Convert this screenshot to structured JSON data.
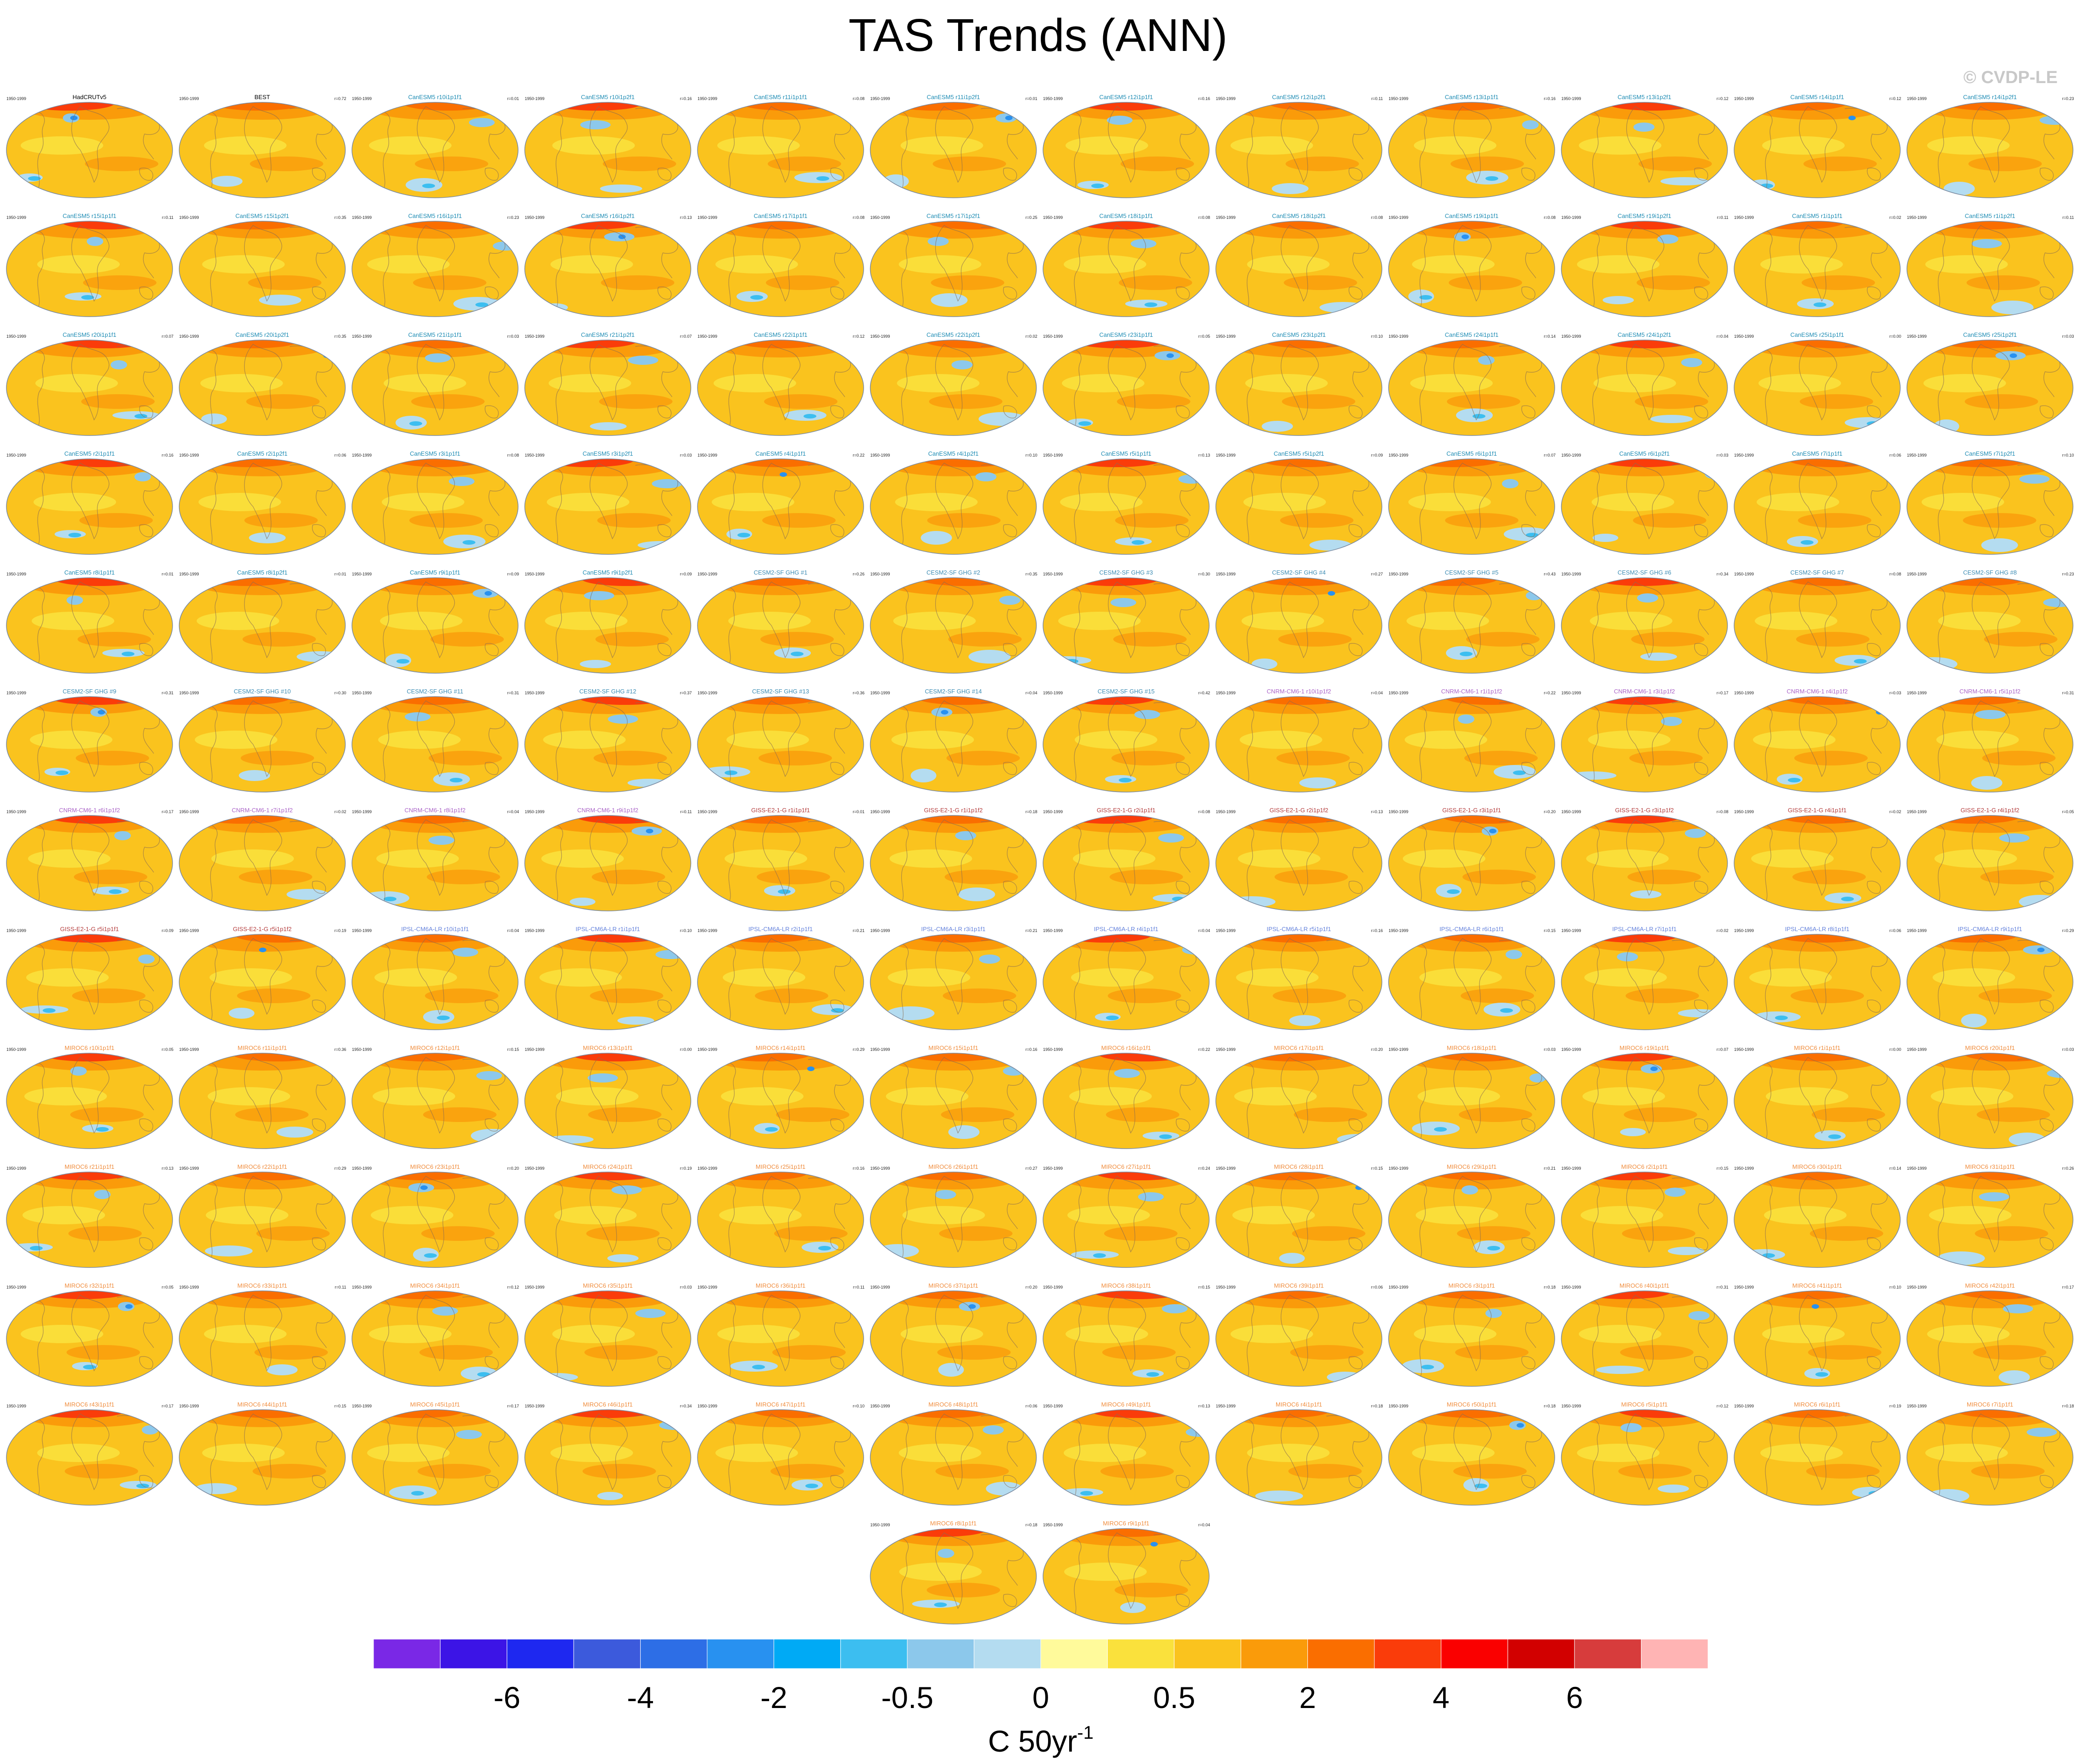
{
  "title": "TAS Trends (ANN)",
  "copyright": "© CVDP-LE",
  "chart_data": {
    "type": "map-panel-grid",
    "columns": 12,
    "period": "1950-1999",
    "panels": [
      {
        "name": "HadCRUTv5",
        "r": "",
        "obs": true
      },
      {
        "name": "BEST",
        "r": "r=0.72",
        "obs": true
      },
      {
        "name": "CanESM5 r10i1p1f1",
        "r": "r=0.01"
      },
      {
        "name": "CanESM5 r10i1p2f1",
        "r": "r=0.16"
      },
      {
        "name": "CanESM5 r11i1p1f1",
        "r": "r=0.08"
      },
      {
        "name": "CanESM5 r11i1p2f1",
        "r": "r=0.01"
      },
      {
        "name": "CanESM5 r12i1p1f1",
        "r": "r=0.16"
      },
      {
        "name": "CanESM5 r12i1p2f1",
        "r": "r=0.11"
      },
      {
        "name": "CanESM5 r13i1p1f1",
        "r": "r=0.16"
      },
      {
        "name": "CanESM5 r13i1p2f1",
        "r": "r=0.12"
      },
      {
        "name": "CanESM5 r14i1p1f1",
        "r": "r=0.12"
      },
      {
        "name": "CanESM5 r14i1p2f1",
        "r": "r=0.23"
      },
      {
        "name": "CanESM5 r15i1p1f1",
        "r": "r=0.11"
      },
      {
        "name": "CanESM5 r15i1p2f1",
        "r": "r=0.35"
      },
      {
        "name": "CanESM5 r16i1p1f1",
        "r": "r=0.23"
      },
      {
        "name": "CanESM5 r16i1p2f1",
        "r": "r=0.13"
      },
      {
        "name": "CanESM5 r17i1p1f1",
        "r": "r=0.08"
      },
      {
        "name": "CanESM5 r17i1p2f1",
        "r": "r=0.25"
      },
      {
        "name": "CanESM5 r18i1p1f1",
        "r": "r=0.08"
      },
      {
        "name": "CanESM5 r18i1p2f1",
        "r": "r=0.08"
      },
      {
        "name": "CanESM5 r19i1p1f1",
        "r": "r=0.08"
      },
      {
        "name": "CanESM5 r19i1p2f1",
        "r": "r=0.11"
      },
      {
        "name": "CanESM5 r1i1p1f1",
        "r": "r=0.02"
      },
      {
        "name": "CanESM5 r1i1p2f1",
        "r": "r=0.11"
      },
      {
        "name": "CanESM5 r20i1p1f1",
        "r": "r=0.07"
      },
      {
        "name": "CanESM5 r20i1p2f1",
        "r": "r=0.35"
      },
      {
        "name": "CanESM5 r21i1p1f1",
        "r": "r=0.03"
      },
      {
        "name": "CanESM5 r21i1p2f1",
        "r": "r=0.07"
      },
      {
        "name": "CanESM5 r22i1p1f1",
        "r": "r=0.12"
      },
      {
        "name": "CanESM5 r22i1p2f1",
        "r": "r=0.02"
      },
      {
        "name": "CanESM5 r23i1p1f1",
        "r": "r=0.05"
      },
      {
        "name": "CanESM5 r23i1p2f1",
        "r": "r=0.10"
      },
      {
        "name": "CanESM5 r24i1p1f1",
        "r": "r=0.14"
      },
      {
        "name": "CanESM5 r24i1p2f1",
        "r": "r=0.04"
      },
      {
        "name": "CanESM5 r25i1p1f1",
        "r": "r=0.00"
      },
      {
        "name": "CanESM5 r25i1p2f1",
        "r": "r=0.03"
      },
      {
        "name": "CanESM5 r2i1p1f1",
        "r": "r=0.16"
      },
      {
        "name": "CanESM5 r2i1p2f1",
        "r": "r=0.06"
      },
      {
        "name": "CanESM5 r3i1p1f1",
        "r": "r=0.08"
      },
      {
        "name": "CanESM5 r3i1p2f1",
        "r": "r=0.03"
      },
      {
        "name": "CanESM5 r4i1p1f1",
        "r": "r=0.22"
      },
      {
        "name": "CanESM5 r4i1p2f1",
        "r": "r=0.10"
      },
      {
        "name": "CanESM5 r5i1p1f1",
        "r": "r=0.13"
      },
      {
        "name": "CanESM5 r5i1p2f1",
        "r": "r=0.09"
      },
      {
        "name": "CanESM5 r6i1p1f1",
        "r": "r=0.07"
      },
      {
        "name": "CanESM5 r6i1p2f1",
        "r": "r=0.03"
      },
      {
        "name": "CanESM5 r7i1p1f1",
        "r": "r=0.06"
      },
      {
        "name": "CanESM5 r7i1p2f1",
        "r": "r=0.10"
      },
      {
        "name": "CanESM5 r8i1p1f1",
        "r": "r=0.01"
      },
      {
        "name": "CanESM5 r8i1p2f1",
        "r": "r=0.01"
      },
      {
        "name": "CanESM5 r9i1p1f1",
        "r": "r=0.09"
      },
      {
        "name": "CanESM5 r9i1p2f1",
        "r": "r=0.09"
      },
      {
        "name": "CESM2-SF GHG #1",
        "r": "r=0.26"
      },
      {
        "name": "CESM2-SF GHG #2",
        "r": "r=0.35"
      },
      {
        "name": "CESM2-SF GHG #3",
        "r": "r=0.30"
      },
      {
        "name": "CESM2-SF GHG #4",
        "r": "r=0.27"
      },
      {
        "name": "CESM2-SF GHG #5",
        "r": "r=0.43"
      },
      {
        "name": "CESM2-SF GHG #6",
        "r": "r=0.34"
      },
      {
        "name": "CESM2-SF GHG #7",
        "r": "r=0.08"
      },
      {
        "name": "CESM2-SF GHG #8",
        "r": "r=0.23"
      },
      {
        "name": "CESM2-SF GHG #9",
        "r": "r=0.31"
      },
      {
        "name": "CESM2-SF GHG #10",
        "r": "r=0.30"
      },
      {
        "name": "CESM2-SF GHG #11",
        "r": "r=0.31"
      },
      {
        "name": "CESM2-SF GHG #12",
        "r": "r=0.37"
      },
      {
        "name": "CESM2-SF GHG #13",
        "r": "r=0.36"
      },
      {
        "name": "CESM2-SF GHG #14",
        "r": "r=0.04"
      },
      {
        "name": "CESM2-SF GHG #15",
        "r": "r=0.42"
      },
      {
        "name": "CNRM-CM6-1 r10i1p1f2",
        "r": "r=0.04"
      },
      {
        "name": "CNRM-CM6-1 r1i1p1f2",
        "r": "r=0.22"
      },
      {
        "name": "CNRM-CM6-1 r3i1p1f2",
        "r": "r=0.17"
      },
      {
        "name": "CNRM-CM6-1 r4i1p1f2",
        "r": "r=0.03"
      },
      {
        "name": "CNRM-CM6-1 r5i1p1f2",
        "r": "r=0.31"
      },
      {
        "name": "CNRM-CM6-1 r6i1p1f2",
        "r": "r=0.17"
      },
      {
        "name": "CNRM-CM6-1 r7i1p1f2",
        "r": "r=0.02"
      },
      {
        "name": "CNRM-CM6-1 r8i1p1f2",
        "r": "r=0.04"
      },
      {
        "name": "CNRM-CM6-1 r9i1p1f2",
        "r": "r=0.11"
      },
      {
        "name": "GISS-E2-1-G r1i1p1f1",
        "r": "r=0.01"
      },
      {
        "name": "GISS-E2-1-G r1i1p1f2",
        "r": "r=0.18"
      },
      {
        "name": "GISS-E2-1-G r2i1p1f1",
        "r": "r=0.08"
      },
      {
        "name": "GISS-E2-1-G r2i1p1f2",
        "r": "r=0.13"
      },
      {
        "name": "GISS-E2-1-G r3i1p1f1",
        "r": "r=0.20"
      },
      {
        "name": "GISS-E2-1-G r3i1p1f2",
        "r": "r=0.08"
      },
      {
        "name": "GISS-E2-1-G r4i1p1f1",
        "r": "r=0.02"
      },
      {
        "name": "GISS-E2-1-G r4i1p1f2",
        "r": "r=0.05"
      },
      {
        "name": "GISS-E2-1-G r5i1p1f1",
        "r": "r=0.09"
      },
      {
        "name": "GISS-E2-1-G r5i1p1f2",
        "r": "r=0.19"
      },
      {
        "name": "IPSL-CM6A-LR r10i1p1f1",
        "r": "r=0.04"
      },
      {
        "name": "IPSL-CM6A-LR r1i1p1f1",
        "r": "r=0.10"
      },
      {
        "name": "IPSL-CM6A-LR r2i1p1f1",
        "r": "r=0.21"
      },
      {
        "name": "IPSL-CM6A-LR r3i1p1f1",
        "r": "r=0.21"
      },
      {
        "name": "IPSL-CM6A-LR r4i1p1f1",
        "r": "r=0.04"
      },
      {
        "name": "IPSL-CM6A-LR r5i1p1f1",
        "r": "r=0.16"
      },
      {
        "name": "IPSL-CM6A-LR r6i1p1f1",
        "r": "r=0.15"
      },
      {
        "name": "IPSL-CM6A-LR r7i1p1f1",
        "r": "r=0.02"
      },
      {
        "name": "IPSL-CM6A-LR r8i1p1f1",
        "r": "r=0.06"
      },
      {
        "name": "IPSL-CM6A-LR r9i1p1f1",
        "r": "r=0.29"
      },
      {
        "name": "MIROC6 r10i1p1f1",
        "r": "r=0.05"
      },
      {
        "name": "MIROC6 r11i1p1f1",
        "r": "r=0.36"
      },
      {
        "name": "MIROC6 r12i1p1f1",
        "r": "r=0.15"
      },
      {
        "name": "MIROC6 r13i1p1f1",
        "r": "r=0.00"
      },
      {
        "name": "MIROC6 r14i1p1f1",
        "r": "r=0.29"
      },
      {
        "name": "MIROC6 r15i1p1f1",
        "r": "r=0.16"
      },
      {
        "name": "MIROC6 r16i1p1f1",
        "r": "r=0.22"
      },
      {
        "name": "MIROC6 r17i1p1f1",
        "r": "r=0.20"
      },
      {
        "name": "MIROC6 r18i1p1f1",
        "r": "r=0.03"
      },
      {
        "name": "MIROC6 r19i1p1f1",
        "r": "r=0.07"
      },
      {
        "name": "MIROC6 r1i1p1f1",
        "r": "r=0.00"
      },
      {
        "name": "MIROC6 r20i1p1f1",
        "r": "r=0.03"
      },
      {
        "name": "MIROC6 r21i1p1f1",
        "r": "r=0.13"
      },
      {
        "name": "MIROC6 r22i1p1f1",
        "r": "r=0.29"
      },
      {
        "name": "MIROC6 r23i1p1f1",
        "r": "r=0.20"
      },
      {
        "name": "MIROC6 r24i1p1f1",
        "r": "r=0.19"
      },
      {
        "name": "MIROC6 r25i1p1f1",
        "r": "r=0.16"
      },
      {
        "name": "MIROC6 r26i1p1f1",
        "r": "r=0.27"
      },
      {
        "name": "MIROC6 r27i1p1f1",
        "r": "r=0.24"
      },
      {
        "name": "MIROC6 r28i1p1f1",
        "r": "r=0.15"
      },
      {
        "name": "MIROC6 r29i1p1f1",
        "r": "r=0.21"
      },
      {
        "name": "MIROC6 r2i1p1f1",
        "r": "r=0.15"
      },
      {
        "name": "MIROC6 r30i1p1f1",
        "r": "r=0.14"
      },
      {
        "name": "MIROC6 r31i1p1f1",
        "r": "r=0.26"
      },
      {
        "name": "MIROC6 r32i1p1f1",
        "r": "r=0.05"
      },
      {
        "name": "MIROC6 r33i1p1f1",
        "r": "r=0.11"
      },
      {
        "name": "MIROC6 r34i1p1f1",
        "r": "r=0.12"
      },
      {
        "name": "MIROC6 r35i1p1f1",
        "r": "r=0.03"
      },
      {
        "name": "MIROC6 r36i1p1f1",
        "r": "r=0.11"
      },
      {
        "name": "MIROC6 r37i1p1f1",
        "r": "r=0.20"
      },
      {
        "name": "MIROC6 r38i1p1f1",
        "r": "r=0.15"
      },
      {
        "name": "MIROC6 r39i1p1f1",
        "r": "r=0.06"
      },
      {
        "name": "MIROC6 r3i1p1f1",
        "r": "r=0.18"
      },
      {
        "name": "MIROC6 r40i1p1f1",
        "r": "r=0.31"
      },
      {
        "name": "MIROC6 r41i1p1f1",
        "r": "r=0.10"
      },
      {
        "name": "MIROC6 r42i1p1f1",
        "r": "r=0.17"
      },
      {
        "name": "MIROC6 r43i1p1f1",
        "r": "r=0.17"
      },
      {
        "name": "MIROC6 r44i1p1f1",
        "r": "r=0.15"
      },
      {
        "name": "MIROC6 r45i1p1f1",
        "r": "r=0.17"
      },
      {
        "name": "MIROC6 r46i1p1f1",
        "r": "r=0.34"
      },
      {
        "name": "MIROC6 r47i1p1f1",
        "r": "r=0.10"
      },
      {
        "name": "MIROC6 r48i1p1f1",
        "r": "r=0.06"
      },
      {
        "name": "MIROC6 r49i1p1f1",
        "r": "r=0.13"
      },
      {
        "name": "MIROC6 r4i1p1f1",
        "r": "r=0.18"
      },
      {
        "name": "MIROC6 r50i1p1f1",
        "r": "r=0.18"
      },
      {
        "name": "MIROC6 r5i1p1f1",
        "r": "r=0.12"
      },
      {
        "name": "MIROC6 r6i1p1f1",
        "r": "r=0.19"
      },
      {
        "name": "MIROC6 r7i1p1f1",
        "r": "r=0.18"
      },
      {
        "name": "MIROC6 r8i1p1f1",
        "r": "r=0.18"
      },
      {
        "name": "MIROC6 r9i1p1f1",
        "r": "r=0.04"
      }
    ],
    "colorbar": {
      "colors": [
        "#7a28e6",
        "#3c14e6",
        "#1e28f0",
        "#3c5adc",
        "#2d6ee6",
        "#2891f0",
        "#00aaf5",
        "#3cbef0",
        "#8cc8eb",
        "#b4dcf0",
        "#fffa9b",
        "#fae13c",
        "#fac31e",
        "#fa9b0a",
        "#fa6e00",
        "#fa3c0a",
        "#fa0000",
        "#d20000",
        "#d73c3c",
        "#ffb4b4"
      ],
      "tick_labels": [
        "-6",
        "-4",
        "-2",
        "-0.5",
        "0",
        "0.5",
        "2",
        "4",
        "6"
      ],
      "unit": "C 50yr",
      "unit_exponent": "-1"
    }
  }
}
